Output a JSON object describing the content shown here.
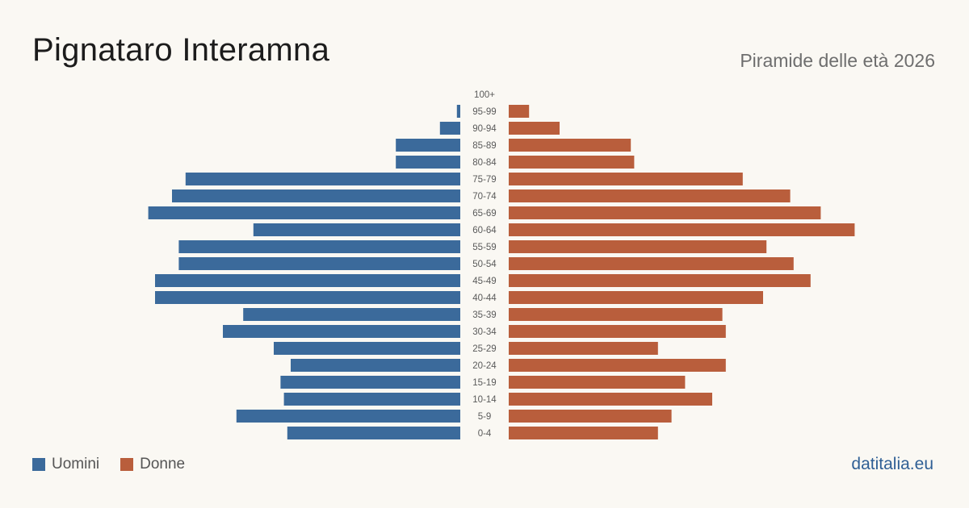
{
  "header": {
    "title": "Pignataro Interamna",
    "subtitle": "Piramide delle età 2026"
  },
  "legend": {
    "men_label": "Uomini",
    "women_label": "Donne",
    "men_color": "#3b6a9b",
    "women_color": "#b95e3c"
  },
  "footer": {
    "brand": "datitalia.eu"
  },
  "chart_data": {
    "type": "bar",
    "orientation": "horizontal-pyramid",
    "categories": [
      "100+",
      "95-99",
      "90-94",
      "85-89",
      "80-84",
      "75-79",
      "70-74",
      "65-69",
      "60-64",
      "55-59",
      "50-54",
      "45-49",
      "40-44",
      "35-39",
      "30-34",
      "25-29",
      "20-24",
      "15-19",
      "10-14",
      "5-9",
      "0-4"
    ],
    "series": [
      {
        "name": "Uomini",
        "color": "#3b6a9b",
        "values": [
          0,
          1,
          6,
          19,
          19,
          81,
          85,
          92,
          61,
          83,
          83,
          90,
          90,
          64,
          70,
          55,
          50,
          53,
          52,
          66,
          51
        ]
      },
      {
        "name": "Donne",
        "color": "#b95e3c",
        "values": [
          0,
          6,
          15,
          36,
          37,
          69,
          83,
          92,
          102,
          76,
          84,
          89,
          75,
          63,
          64,
          44,
          64,
          52,
          60,
          48,
          44
        ]
      }
    ],
    "legend_position": "bottom-left",
    "grid": false
  }
}
